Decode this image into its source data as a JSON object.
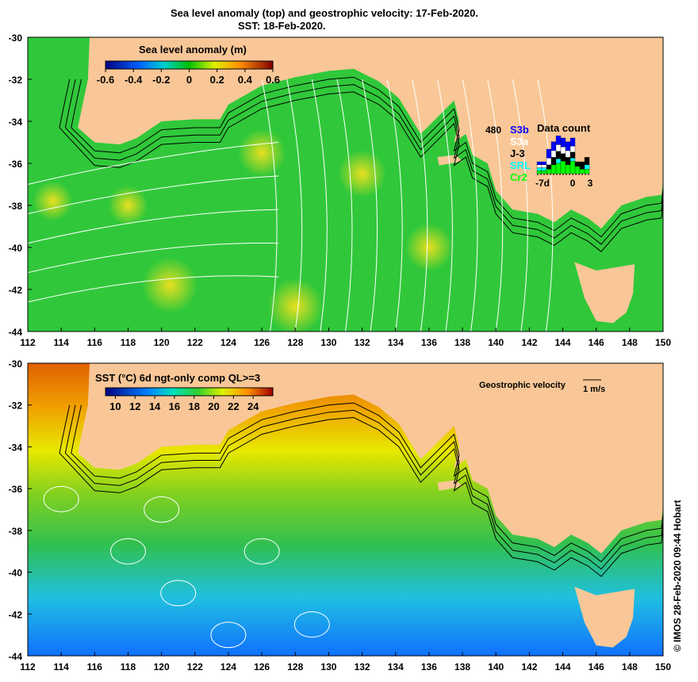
{
  "title_line1": "Sea level anomaly (top) and geostrophic velocity: 17-Feb-2020.",
  "title_line2": "SST: 18-Feb-2020.",
  "credit": "© IMOS 28-Feb-2020 09:44 Hobart",
  "colors": {
    "land": "#f9c797",
    "ocean_green": "#2fc83a",
    "contour": "#ffffff",
    "bathy": "#000000"
  },
  "chart_data": [
    {
      "type": "heatmap",
      "panel": "top",
      "title": "Sea level anomaly (m)",
      "xlim": [
        112,
        150
      ],
      "ylim": [
        -44,
        -30
      ],
      "xticks": [
        "112",
        "114",
        "116",
        "118",
        "120",
        "122",
        "124",
        "126",
        "128",
        "130",
        "132",
        "134",
        "136",
        "138",
        "140",
        "142",
        "144",
        "146",
        "148",
        "150"
      ],
      "yticks": [
        "-30",
        "-32",
        "-34",
        "-36",
        "-38",
        "-40",
        "-42",
        "-44"
      ],
      "colorbar": {
        "range": [
          -0.6,
          0.6
        ],
        "ticks": [
          "-0.6",
          "-0.4",
          "-0.2",
          "0",
          "0.2",
          "0.4",
          "0.6"
        ]
      },
      "inset": {
        "title": "Data count",
        "max_label": "480",
        "xticks": [
          "-7d",
          "0",
          "3"
        ],
        "legend": [
          {
            "name": "S3b",
            "color": "#0000ff"
          },
          {
            "name": "S3a",
            "color": "#ffffff"
          },
          {
            "name": "J-3",
            "color": "#000000"
          },
          {
            "name": "SRL",
            "color": "#00ffff"
          },
          {
            "name": "Cr2",
            "color": "#00ff00"
          }
        ],
        "series": [
          {
            "name": "Cr2",
            "values": [
              40,
              40,
              60,
              120,
              140,
              170,
              120,
              170,
              100,
              60,
              60
            ]
          },
          {
            "name": "SRL",
            "values": [
              40,
              40,
              0,
              0,
              60,
              0,
              0,
              40,
              0,
              0,
              60
            ]
          },
          {
            "name": "J-3",
            "values": [
              0,
              0,
              60,
              100,
              100,
              100,
              100,
              80,
              60,
              100,
              100
            ]
          },
          {
            "name": "S3a",
            "values": [
              40,
              40,
              90,
              90,
              90,
              90,
              90,
              80,
              0,
              0,
              0
            ]
          },
          {
            "name": "S3b",
            "values": [
              40,
              40,
              120,
              120,
              120,
              120,
              120,
              110,
              0,
              0,
              0
            ]
          }
        ]
      }
    },
    {
      "type": "heatmap",
      "panel": "bottom",
      "title": "SST (°C) 6d ngt-only comp QL>=3",
      "xlim": [
        112,
        150
      ],
      "ylim": [
        -44,
        -30
      ],
      "xticks": [
        "112",
        "114",
        "116",
        "118",
        "120",
        "122",
        "124",
        "126",
        "128",
        "130",
        "132",
        "134",
        "136",
        "138",
        "140",
        "142",
        "144",
        "146",
        "148",
        "150"
      ],
      "yticks": [
        "-30",
        "-32",
        "-34",
        "-36",
        "-38",
        "-40",
        "-42",
        "-44"
      ],
      "colorbar": {
        "range": [
          9,
          26
        ],
        "ticks": [
          "10",
          "12",
          "14",
          "16",
          "18",
          "20",
          "22",
          "24"
        ]
      },
      "velocity_legend": {
        "label": "Geostrophic velocity",
        "scale": "1 m/s"
      }
    }
  ]
}
